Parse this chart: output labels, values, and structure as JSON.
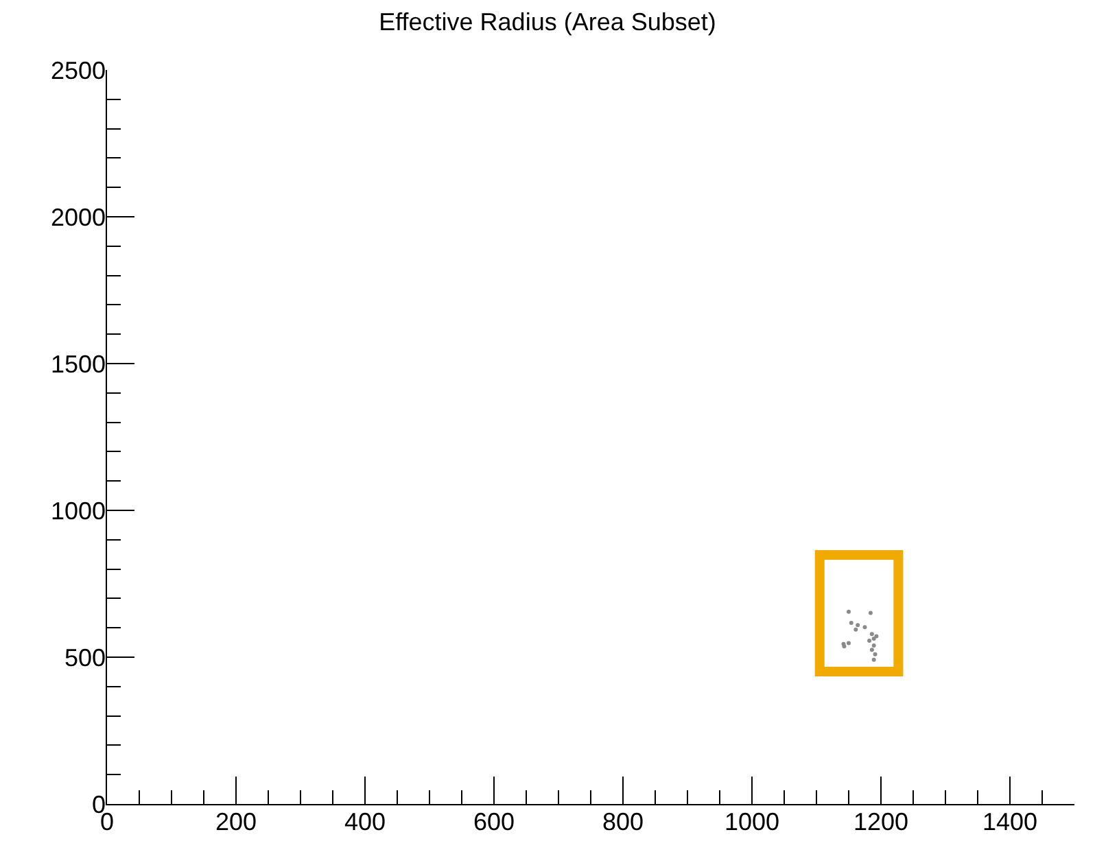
{
  "chart_data": {
    "type": "scatter",
    "title": "Effective Radius (Area Subset)",
    "series": [
      {
        "type": "line",
        "color": "#f0aa00",
        "x": [
          1105,
          1227,
          1227,
          1105,
          1105,
          1227
        ],
        "values": [
          451,
          451,
          848,
          848,
          451,
          451
        ]
      },
      {
        "color": "#8a8a8a",
        "x": [
          1150,
          1184,
          1154,
          1164,
          1175,
          1161,
          1186,
          1193,
          1189,
          1182,
          1150,
          1143,
          1189,
          1186,
          1191,
          1189,
          1142
        ],
        "values": [
          655,
          651,
          617,
          609,
          602,
          594,
          579,
          571,
          563,
          556,
          548,
          537,
          540,
          525,
          510,
          491,
          545
        ]
      }
    ],
    "xlim": [
      0,
      1500
    ],
    "ylim": [
      0,
      2500
    ],
    "xticks": [
      0,
      {
        "value": 50,
        "label": null
      },
      {
        "value": 100,
        "label": null
      },
      {
        "value": 150,
        "label": null
      },
      200,
      {
        "value": 250,
        "label": null
      },
      {
        "value": 300,
        "label": null
      },
      {
        "value": 350,
        "label": null
      },
      400,
      {
        "value": 450,
        "label": null
      },
      {
        "value": 500,
        "label": null
      },
      {
        "value": 550,
        "label": null
      },
      600,
      {
        "value": 650,
        "label": null
      },
      {
        "value": 700,
        "label": null
      },
      {
        "value": 750,
        "label": null
      },
      800,
      {
        "value": 850,
        "label": null
      },
      {
        "value": 900,
        "label": null
      },
      {
        "value": 950,
        "label": null
      },
      1000,
      {
        "value": 1050,
        "label": null
      },
      {
        "value": 1100,
        "label": null
      },
      {
        "value": 1150,
        "label": null
      },
      1200,
      {
        "value": 1250,
        "label": null
      },
      {
        "value": 1300,
        "label": null
      },
      {
        "value": 1350,
        "label": null
      },
      1400,
      {
        "value": 1450,
        "label": null
      }
    ],
    "yticks": [
      0,
      {
        "value": 100,
        "label": null
      },
      {
        "value": 200,
        "label": null
      },
      {
        "value": 300,
        "label": null
      },
      {
        "value": 400,
        "label": null
      },
      500,
      {
        "value": 600,
        "label": null
      },
      {
        "value": 700,
        "label": null
      },
      {
        "value": 800,
        "label": null
      },
      {
        "value": 900,
        "label": null
      },
      1000,
      {
        "value": 1100,
        "label": null
      },
      {
        "value": 1200,
        "label": null
      },
      {
        "value": 1300,
        "label": null
      },
      {
        "value": 1400,
        "label": null
      },
      1500,
      {
        "value": 1600,
        "label": null
      },
      {
        "value": 1700,
        "label": null
      },
      {
        "value": 1800,
        "label": null
      },
      {
        "value": 1900,
        "label": null
      },
      2000,
      {
        "value": 2100,
        "label": null
      },
      {
        "value": 2200,
        "label": null
      },
      {
        "value": 2300,
        "label": null
      },
      {
        "value": 2400,
        "label": null
      },
      2500
    ]
  }
}
